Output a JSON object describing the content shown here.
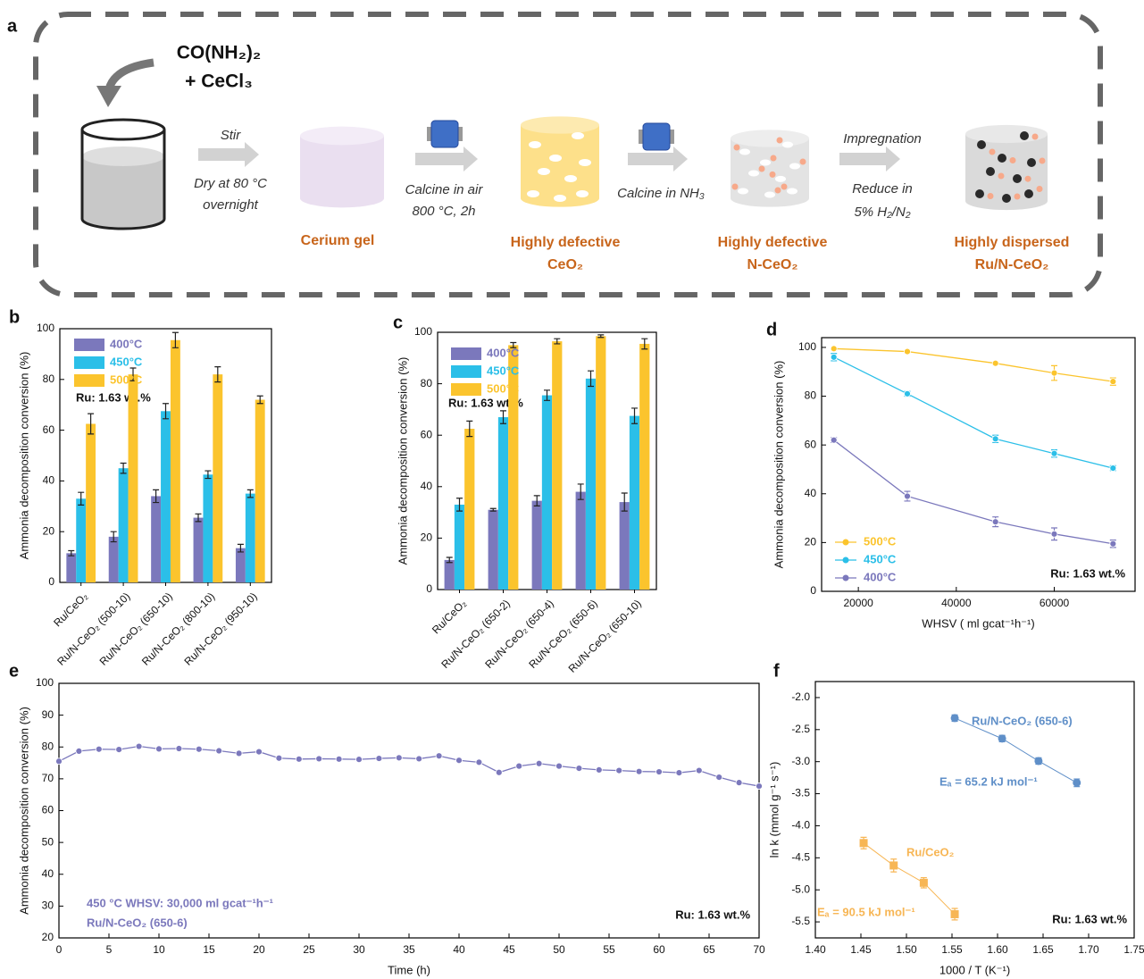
{
  "schematic": {
    "panel_label": "a",
    "precursors": [
      "CO(NH₂)₂",
      "+ CeCl₃"
    ],
    "steps": [
      {
        "above": [
          "Stir"
        ],
        "below": [
          "Dry at 80 °C",
          "overnight"
        ]
      },
      {
        "below": [
          "Calcine in air",
          "800 °C, 2h"
        ]
      },
      {
        "below": [
          "Calcine in NH₃"
        ]
      },
      {
        "above": [
          "Impregnation"
        ],
        "below": [
          "Reduce in",
          "5% H₂/N₂"
        ]
      }
    ],
    "products": [
      [
        "Cerium gel"
      ],
      [
        "Highly defective",
        "CeO₂"
      ],
      [
        "Highly defective",
        "N-CeO₂"
      ],
      [
        "Highly dispersed",
        "Ru/N-CeO₂"
      ]
    ]
  },
  "chart_data": [
    {
      "type": "bar",
      "panel_label": "b",
      "y_label": "Ammonia decomposition conversion (%)",
      "annotation": "Ru: 1.63 wt.%",
      "legend": "upper left",
      "categories": [
        "Ru/CeO₂",
        "Ru/N-CeO₂ (500-10)",
        "Ru/N-CeO₂ (650-10)",
        "Ru/N-CeO₂ (800-10)",
        "Ru/N-CeO₂ (950-10)"
      ],
      "series": [
        {
          "name": "400°C",
          "color": "#7b78bc",
          "values": [
            11.5,
            18,
            34,
            25.5,
            13.5
          ],
          "errors": [
            1,
            2,
            2.5,
            1.5,
            1.5
          ]
        },
        {
          "name": "450°C",
          "color": "#2bbfe8",
          "values": [
            33,
            45,
            67.5,
            42.5,
            35
          ],
          "errors": [
            2.5,
            2,
            3,
            1.5,
            1.5
          ]
        },
        {
          "name": "500°C",
          "color": "#fbc42d",
          "values": [
            62.5,
            82,
            95.5,
            82,
            72
          ],
          "errors": [
            4,
            2.5,
            3,
            3,
            1.5
          ]
        }
      ],
      "ylim": [
        0,
        100
      ],
      "yticks": [
        0,
        20,
        40,
        60,
        80,
        100
      ]
    },
    {
      "type": "bar",
      "panel_label": "c",
      "y_label": "Ammonia decomposition conversion (%)",
      "annotation": "Ru: 1.63 wt.%",
      "legend": "upper left",
      "categories": [
        "Ru/CeO₂",
        "Ru/N-CeO₂ (650-2)",
        "Ru/N-CeO₂ (650-4)",
        "Ru/N-CeO₂ (650-6)",
        "Ru/N-CeO₂ (650-10)"
      ],
      "series": [
        {
          "name": "400°C",
          "color": "#7b78bc",
          "values": [
            11.5,
            31,
            34.5,
            38,
            34
          ],
          "errors": [
            1,
            0.5,
            2,
            3,
            3.5
          ]
        },
        {
          "name": "450°C",
          "color": "#2bbfe8",
          "values": [
            33,
            67,
            75.5,
            82,
            67.5
          ],
          "errors": [
            2.5,
            2.5,
            2,
            3,
            3
          ]
        },
        {
          "name": "500°C",
          "color": "#fbc42d",
          "values": [
            62.5,
            95,
            96.5,
            98.5,
            95.5
          ],
          "errors": [
            3,
            1,
            1,
            0.5,
            2
          ]
        }
      ],
      "ylim": [
        0,
        100
      ],
      "yticks": [
        0,
        20,
        40,
        60,
        80,
        100
      ]
    },
    {
      "type": "line",
      "panel_label": "d",
      "y_label": "Ammonia decomposition conversion (%)",
      "x_label": "WHSV ( ml gcat⁻¹h⁻¹)",
      "annotation": "Ru: 1.63 wt.%",
      "legend": "lower left",
      "x": [
        15000,
        30000,
        48000,
        60000,
        72000
      ],
      "series": [
        {
          "name": "500°C",
          "color": "#fbc42d",
          "values": [
            99.5,
            98.3,
            93.5,
            89.5,
            86
          ],
          "errors": [
            0.5,
            0.5,
            0.5,
            3,
            1.5
          ]
        },
        {
          "name": "450°C",
          "color": "#2bbfe8",
          "values": [
            96,
            81,
            62.5,
            56.5,
            50.5
          ],
          "errors": [
            1.5,
            1,
            1.5,
            1.5,
            1
          ]
        },
        {
          "name": "400°C",
          "color": "#7b78bc",
          "values": [
            62,
            39,
            28.5,
            23.5,
            19.5
          ],
          "errors": [
            1,
            2,
            2,
            2.5,
            1.5
          ]
        }
      ],
      "xlim": [
        12500,
        76500
      ],
      "xticks": [
        20000,
        40000,
        60000
      ],
      "ylim": [
        0,
        104
      ],
      "yticks": [
        0,
        20,
        40,
        60,
        80,
        100
      ]
    },
    {
      "type": "line",
      "panel_label": "e",
      "y_label": "Ammonia decomposition conversion (%)",
      "x_label": "Time (h)",
      "annotation": "Ru: 1.63 wt.%",
      "annotations": [
        "450 °C  WHSV: 30,000 ml gcat⁻¹h⁻¹",
        "Ru/N-CeO₂ (650-6)"
      ],
      "color": "#7b78bc",
      "x": [
        0,
        2,
        4,
        6,
        8,
        10,
        12,
        14,
        16,
        18,
        20,
        22,
        24,
        26,
        28,
        30,
        32,
        34,
        36,
        38,
        40,
        42,
        44,
        46,
        48,
        50,
        52,
        54,
        56,
        58,
        60,
        62,
        64,
        66,
        68,
        70
      ],
      "values": [
        75.5,
        78.7,
        79.3,
        79.2,
        80.2,
        79.4,
        79.5,
        79.3,
        78.8,
        78,
        78.5,
        76.5,
        76.2,
        76.3,
        76.2,
        76.1,
        76.4,
        76.6,
        76.3,
        77.2,
        75.8,
        75.2,
        72,
        74,
        74.8,
        74,
        73.3,
        72.8,
        72.6,
        72.3,
        72.2,
        71.9,
        72.6,
        70.5,
        68.8,
        67.7
      ],
      "xlim": [
        0,
        70
      ],
      "xticks": [
        0,
        5,
        10,
        15,
        20,
        25,
        30,
        35,
        40,
        45,
        50,
        55,
        60,
        65,
        70
      ],
      "ylim": [
        20,
        100
      ],
      "yticks": [
        20,
        30,
        40,
        50,
        60,
        70,
        80,
        90,
        100
      ]
    },
    {
      "type": "scatter",
      "panel_label": "f",
      "y_label": "ln k (mmol g⁻¹ s⁻¹)",
      "x_label": "1000 / T (K⁻¹)",
      "annotation": "Ru: 1.63 wt.%",
      "series": [
        {
          "name": "Ru/N-CeO₂ (650-6)",
          "activation_energy": "Eₐ = 65.2 kJ mol⁻¹",
          "color": "#5f8fc8",
          "x": [
            1.553,
            1.605,
            1.645,
            1.687
          ],
          "values": [
            -2.32,
            -2.64,
            -2.99,
            -3.33
          ],
          "errors": [
            0.05,
            0.05,
            0.05,
            0.06
          ]
        },
        {
          "name": "Ru/CeO₂",
          "activation_energy": "Eₐ = 90.5 kJ mol⁻¹",
          "color": "#f7b655",
          "x": [
            1.453,
            1.486,
            1.519,
            1.553
          ],
          "values": [
            -4.27,
            -4.62,
            -4.89,
            -5.38
          ],
          "errors": [
            0.09,
            0.1,
            0.08,
            0.09
          ]
        }
      ],
      "xlim": [
        1.4,
        1.75
      ],
      "xticks": [
        {
          "value": 1.4,
          "label": "1.40"
        },
        1.45,
        {
          "value": 1.5,
          "label": "1.50"
        },
        1.55,
        {
          "value": 1.6,
          "label": "1.60"
        },
        1.65,
        {
          "value": 1.7,
          "label": "1.70"
        },
        1.75
      ],
      "ylim": [
        -5.75,
        -1.75
      ],
      "yticks": [
        {
          "value": -2,
          "label": "-2.0"
        },
        -2.5,
        {
          "value": -3,
          "label": "-3.0"
        },
        -3.5,
        {
          "value": -4,
          "label": "-4.0"
        },
        -4.5,
        {
          "value": -5,
          "label": "-5.0"
        },
        -5.5
      ]
    }
  ]
}
